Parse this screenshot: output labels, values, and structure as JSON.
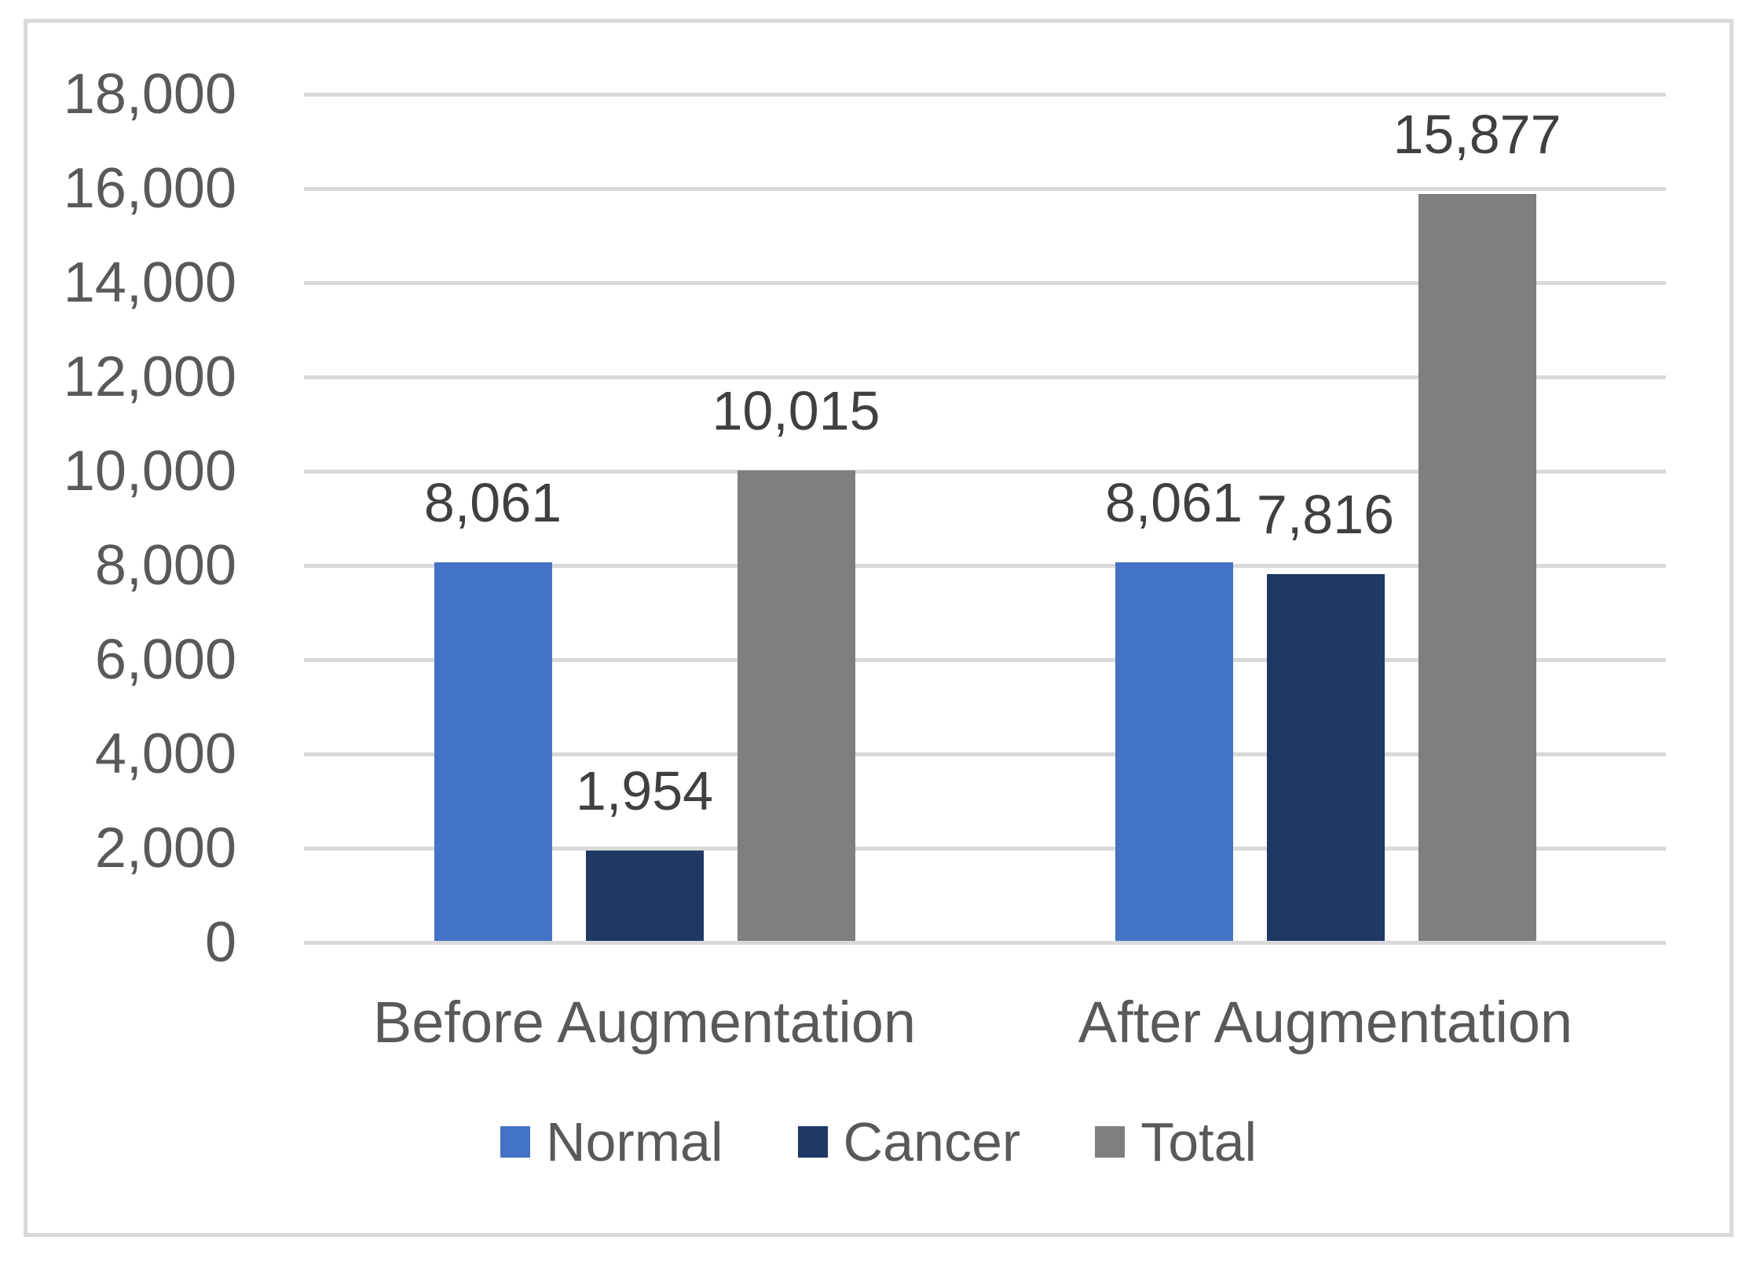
{
  "chart_data": {
    "type": "bar",
    "title": "",
    "xlabel": "",
    "ylabel": "",
    "categories": [
      "Before Augmentation",
      "After Augmentation"
    ],
    "series": [
      {
        "name": "Normal",
        "color": "#4472C4",
        "values": [
          8061,
          8061
        ]
      },
      {
        "name": "Cancer",
        "color": "#1F3864",
        "values": [
          1954,
          7816
        ]
      },
      {
        "name": "Total",
        "color": "#7F7F7F",
        "values": [
          10015,
          15877
        ]
      }
    ],
    "data_labels": [
      [
        "8,061",
        "1,954",
        "10,015"
      ],
      [
        "8,061",
        "7,816",
        "15,877"
      ]
    ],
    "y_axis": {
      "min": 0,
      "max": 18000,
      "step": 2000,
      "tick_labels": [
        "0",
        "2,000",
        "4,000",
        "6,000",
        "8,000",
        "10,000",
        "12,000",
        "14,000",
        "16,000",
        "18,000"
      ]
    },
    "grid": true,
    "legend_position": "bottom",
    "legend_entries": [
      "Normal",
      "Cancer",
      "Total"
    ]
  },
  "colors": {
    "gridline": "#D9D9D9",
    "frame_border": "#D9D9D9",
    "axis_text": "#595959",
    "category_text": "#595959",
    "legend_text": "#595959",
    "data_label_text": "#404040",
    "background": "#FFFFFF"
  }
}
